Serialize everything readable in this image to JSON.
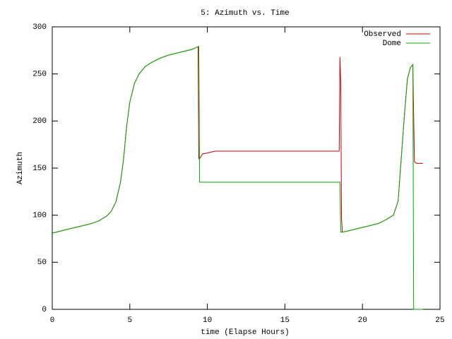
{
  "chart_data": {
    "type": "line",
    "title": "5: Azimuth vs. Time",
    "x_label": "time (Elapse Hours)",
    "y_label": "Azimuth",
    "x": [
      0,
      0.5,
      1,
      1.5,
      2,
      2.5,
      3,
      3.5,
      3.8,
      4.1,
      4.4,
      4.6,
      4.8,
      5,
      5.3,
      5.6,
      6,
      6.5,
      7,
      7.5,
      8,
      8.5,
      9,
      9.3,
      9.4,
      9.45,
      9.5,
      9.7,
      10,
      10.5,
      12,
      15,
      18.4,
      18.5,
      18.55,
      18.6,
      18.65,
      18.7,
      19,
      19.5,
      20,
      20.5,
      21,
      21.5,
      22,
      22.3,
      22.5,
      22.7,
      22.9,
      23.1,
      23.2,
      23.25,
      23.3,
      23.35,
      23.4,
      23.5,
      23.9
    ],
    "series": [
      {
        "name": "Observed",
        "color": "#cc0000",
        "values": [
          81,
          83,
          85,
          87,
          89,
          91,
          94,
          99,
          104,
          114,
          135,
          160,
          195,
          220,
          240,
          250,
          258,
          263,
          267,
          270,
          272,
          274,
          276,
          278,
          279,
          160,
          160,
          165,
          166,
          168,
          168,
          168,
          168,
          168,
          268,
          240,
          97,
          82,
          83,
          85,
          87,
          89,
          91,
          95,
          100,
          115,
          160,
          205,
          245,
          257,
          259,
          260,
          208,
          157,
          156,
          155,
          155
        ]
      },
      {
        "name": "Dome",
        "color": "#00aa00",
        "values": [
          81,
          83,
          85,
          87,
          89,
          91,
          94,
          99,
          104,
          114,
          135,
          160,
          195,
          220,
          240,
          250,
          258,
          263,
          267,
          270,
          272,
          274,
          276,
          278,
          279,
          279,
          135,
          135,
          135,
          135,
          135,
          135,
          135,
          135,
          135,
          82,
          82,
          82,
          83,
          85,
          87,
          89,
          91,
          95,
          100,
          115,
          160,
          205,
          245,
          257,
          259,
          260,
          0,
          0,
          0,
          0,
          0
        ]
      }
    ],
    "xlim": [
      0,
      25
    ],
    "xticks": [
      0,
      5,
      10,
      15,
      20,
      25
    ],
    "ylim": [
      0,
      300
    ],
    "yticks": [
      0,
      50,
      100,
      150,
      200,
      250,
      300
    ],
    "legend": "top-right",
    "grid": false
  }
}
